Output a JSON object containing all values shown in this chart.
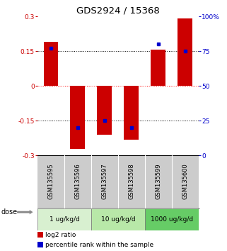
{
  "title": "GDS2924 / 15368",
  "samples": [
    "GSM135595",
    "GSM135596",
    "GSM135597",
    "GSM135598",
    "GSM135599",
    "GSM135600"
  ],
  "log2_ratios": [
    0.19,
    -0.27,
    -0.21,
    -0.23,
    0.155,
    0.29
  ],
  "percentile_ranks": [
    77,
    20,
    25,
    20,
    80,
    75
  ],
  "dose_groups": [
    {
      "label": "1 ug/kg/d",
      "samples": [
        0,
        1
      ],
      "color": "#d8f0d0"
    },
    {
      "label": "10 ug/kg/d",
      "samples": [
        2,
        3
      ],
      "color": "#b8e8a8"
    },
    {
      "label": "1000 ug/kg/d",
      "samples": [
        4,
        5
      ],
      "color": "#66cc66"
    }
  ],
  "bar_color": "#cc0000",
  "dot_color": "#0000cc",
  "ylim": [
    -0.3,
    0.3
  ],
  "yticks_left": [
    -0.3,
    -0.15,
    0,
    0.15,
    0.3
  ],
  "yticks_right": [
    0,
    25,
    50,
    75,
    100
  ],
  "left_tick_labels": [
    "-0.3",
    "-0.15",
    "0",
    "0.15",
    "0.3"
  ],
  "right_tick_labels": [
    "0",
    "25",
    "50",
    "75",
    "100%"
  ],
  "hlines": [
    -0.15,
    0.0,
    0.15
  ],
  "hline_colors": [
    "black",
    "red",
    "black"
  ],
  "hline_styles": [
    "dotted",
    "dotted",
    "dotted"
  ],
  "bar_width": 0.55,
  "legend_items": [
    {
      "color": "#cc0000",
      "label": "log2 ratio"
    },
    {
      "color": "#0000cc",
      "label": "percentile rank within the sample"
    }
  ],
  "background_color": "#ffffff",
  "plot_bg": "#ffffff",
  "sample_bg": "#cccccc",
  "dose_label": "dose",
  "left_axis_color": "#cc0000",
  "right_axis_color": "#0000cc"
}
